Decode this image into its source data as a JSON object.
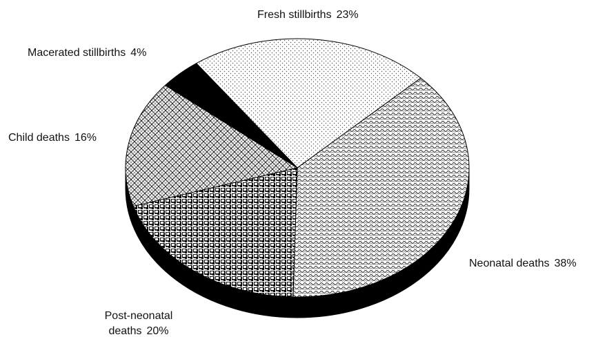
{
  "chart_data": {
    "type": "pie",
    "categories": [
      "Fresh stillbirths",
      "Neonatal deaths",
      "Post-neonatal deaths",
      "Child deaths",
      "Macerated stillbirths"
    ],
    "values": [
      23,
      38,
      20,
      16,
      4
    ],
    "value_labels": [
      "23%",
      "38%",
      "20%",
      "16%",
      "4%"
    ]
  }
}
